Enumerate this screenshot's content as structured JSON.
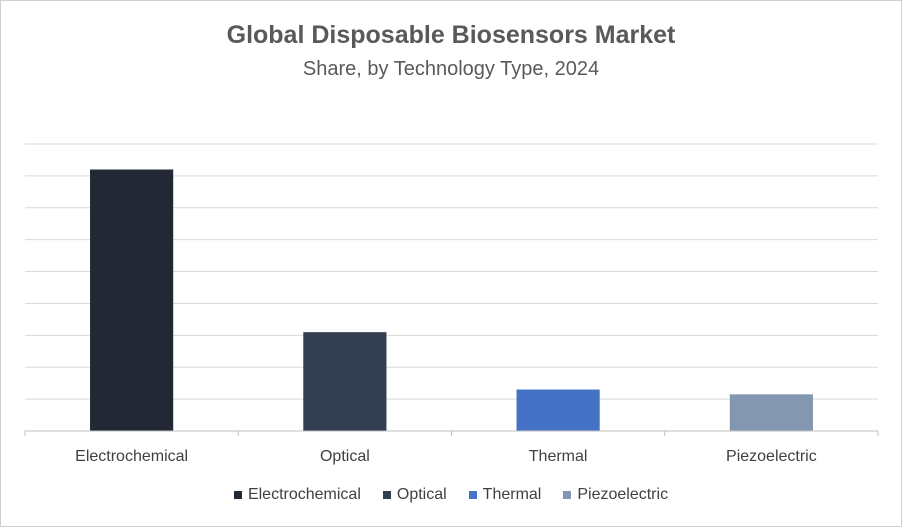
{
  "chart_data": {
    "type": "bar",
    "title": "Global Disposable Biosensors Market",
    "subtitle": "Share, by Technology Type, 2024",
    "categories": [
      "Electrochemical",
      "Optical",
      "Thermal",
      "Piezoelectric"
    ],
    "values": [
      8.2,
      3.1,
      1.3,
      1.15
    ],
    "colors": [
      "#222935",
      "#333f50",
      "#4472c4",
      "#8497b0"
    ],
    "ylim": [
      0,
      9
    ],
    "y_axis_labels": "hidden",
    "grid": true,
    "legend": "bottom",
    "legend_entries": [
      "Electrochemical",
      "Optical",
      "Thermal",
      "Piezoelectric"
    ]
  }
}
